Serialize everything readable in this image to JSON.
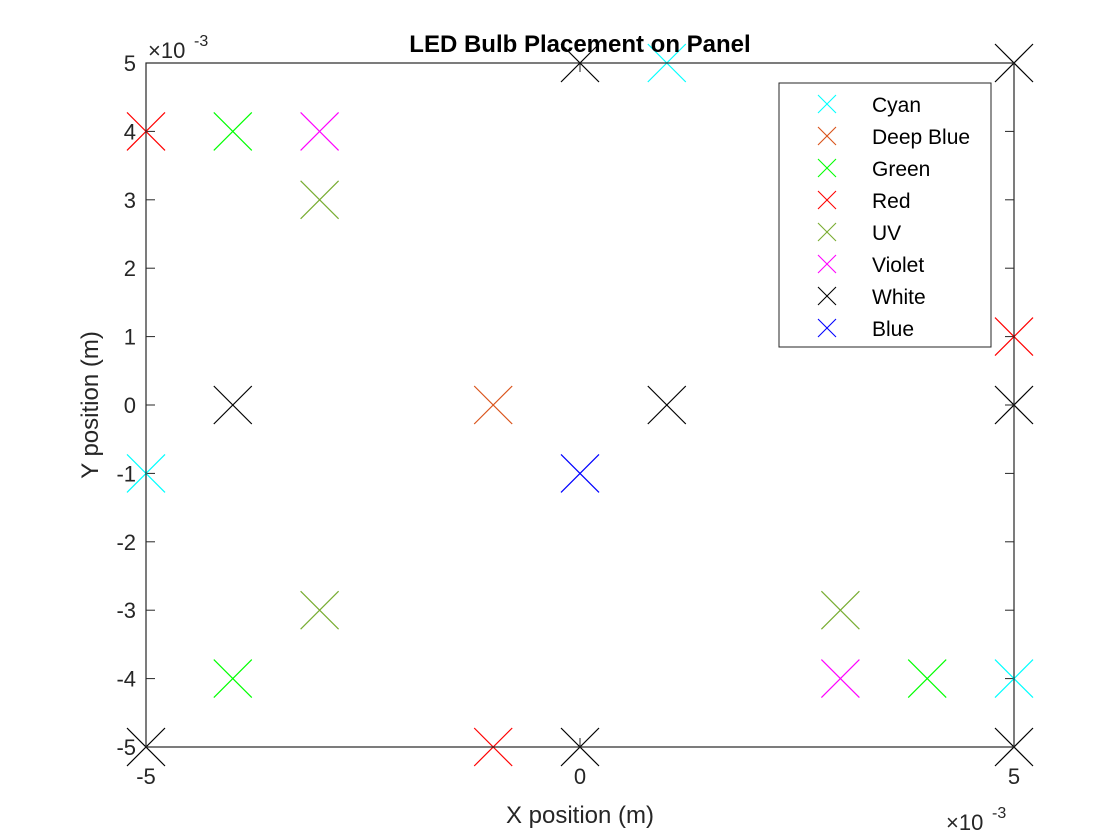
{
  "chart_data": {
    "type": "scatter",
    "title": "LED Bulb Placement on Panel",
    "xlabel": "X position (m)",
    "ylabel": "Y position (m)",
    "xlim": [
      -0.005,
      0.005
    ],
    "ylim": [
      -0.005,
      0.005
    ],
    "grid": false,
    "x_scale_text": "×10",
    "x_scale_exponent": "-3",
    "y_scale_text": "×10",
    "y_scale_exponent": "-3",
    "x_tick_labels": [
      "-5",
      "0",
      "5"
    ],
    "y_tick_labels": [
      "5",
      "4",
      "3",
      "2",
      "1",
      "0",
      "-1",
      "-2",
      "-3",
      "-4",
      "-5"
    ],
    "marker": "x",
    "legend_position": "top-right",
    "series": [
      {
        "name": "Cyan",
        "color": "#00FFFF",
        "points": [
          [
            0.001,
            0.005
          ],
          [
            -0.005,
            -0.001
          ],
          [
            0.005,
            -0.004
          ]
        ]
      },
      {
        "name": "Deep Blue",
        "color": "#D95319",
        "points": [
          [
            -0.001,
            0.0
          ]
        ]
      },
      {
        "name": "Green",
        "color": "#00FF00",
        "points": [
          [
            -0.004,
            0.004
          ],
          [
            -0.004,
            -0.004
          ],
          [
            0.004,
            -0.004
          ]
        ]
      },
      {
        "name": "Red",
        "color": "#FF0000",
        "points": [
          [
            -0.005,
            0.004
          ],
          [
            0.005,
            0.001
          ],
          [
            -0.001,
            -0.005
          ]
        ]
      },
      {
        "name": "UV",
        "color": "#77AC30",
        "points": [
          [
            -0.003,
            0.003
          ],
          [
            -0.003,
            -0.003
          ],
          [
            0.003,
            -0.003
          ]
        ]
      },
      {
        "name": "Violet",
        "color": "#FF00FF",
        "points": [
          [
            -0.003,
            0.004
          ],
          [
            0.003,
            -0.004
          ]
        ]
      },
      {
        "name": "White",
        "color": "#000000",
        "points": [
          [
            0.0,
            0.005
          ],
          [
            0.005,
            0.005
          ],
          [
            -0.004,
            0.0
          ],
          [
            0.001,
            0.0
          ],
          [
            0.005,
            0.0
          ],
          [
            -0.005,
            -0.005
          ],
          [
            0.0,
            -0.005
          ],
          [
            0.005,
            -0.005
          ]
        ]
      },
      {
        "name": "Blue",
        "color": "#0000FF",
        "points": [
          [
            0.0,
            -0.001
          ]
        ]
      }
    ]
  }
}
